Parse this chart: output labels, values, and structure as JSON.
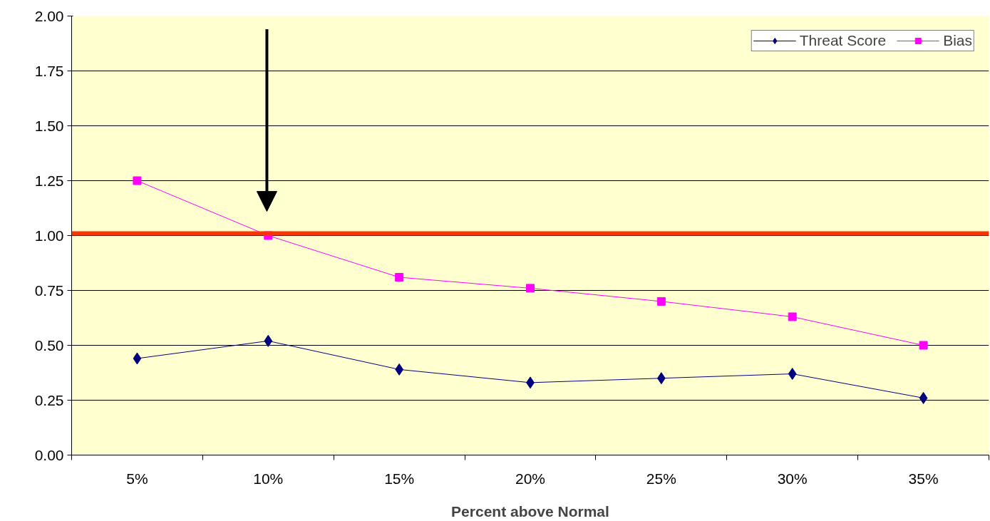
{
  "chart_data": {
    "type": "line",
    "xlabel": "Percent above Normal",
    "categories": [
      "5%",
      "10%",
      "15%",
      "20%",
      "25%",
      "30%",
      "35%"
    ],
    "series": [
      {
        "name": "Threat Score",
        "color": "#000080",
        "marker": "diamond",
        "values": [
          0.44,
          0.52,
          0.39,
          0.33,
          0.35,
          0.37,
          0.26
        ]
      },
      {
        "name": "Bias",
        "color": "#ff00ff",
        "marker": "square",
        "values": [
          1.25,
          1.0,
          0.81,
          0.76,
          0.7,
          0.63,
          0.5
        ]
      }
    ],
    "ylim": [
      0,
      2
    ],
    "yticks": [
      {
        "value": 0,
        "label": "0.00"
      },
      {
        "value": 0.25,
        "label": "0.25"
      },
      {
        "value": 0.5,
        "label": "0.50"
      },
      {
        "value": 0.75,
        "label": "0.75"
      },
      {
        "value": 1,
        "label": "1.00"
      },
      {
        "value": 1.25,
        "label": "1.25"
      },
      {
        "value": 1.5,
        "label": "1.50"
      },
      {
        "value": 1.75,
        "label": "1.75"
      },
      {
        "value": 2,
        "label": "2.00"
      }
    ],
    "ref_lines": [
      {
        "axis": "y",
        "value": 1.01,
        "color": "#ff3300"
      }
    ],
    "grid": "y",
    "legend": "top right",
    "line_style": "solid"
  }
}
